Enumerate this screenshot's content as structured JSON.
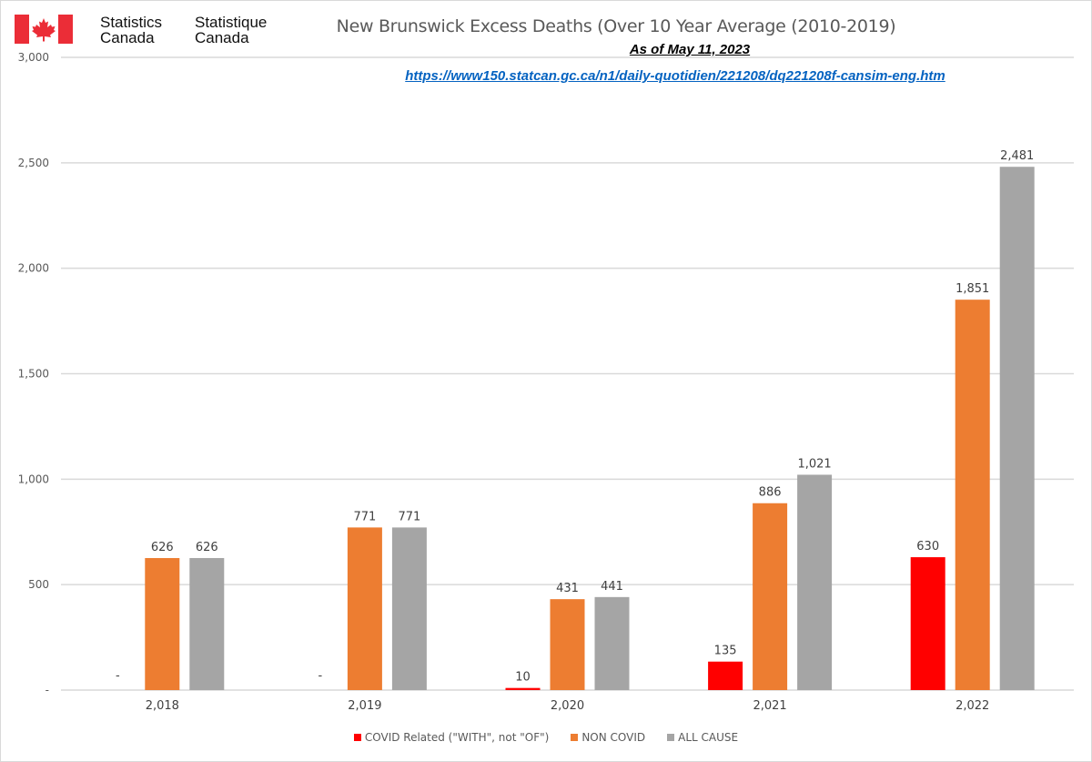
{
  "header": {
    "brand_en_line1": "Statistics",
    "brand_en_line2": "Canada",
    "brand_fr_line1": "Statistique",
    "brand_fr_line2": "Canada",
    "logo_icon": "canada-flag-icon"
  },
  "colors": {
    "covid": "#ff0000",
    "non_covid": "#ed7d31",
    "all_cause": "#a5a5a5",
    "gridline": "#d9d9d9",
    "flag_red": "#eb2d37"
  },
  "chart_data": {
    "type": "bar",
    "title": "New Brunswick Excess Deaths (Over 10 Year Average (2010-2019)",
    "subtitle": "As of May 11, 2023",
    "source_link": "https://www150.statcan.gc.ca/n1/daily-quotidien/221208/dq221208f-cansim-eng.htm",
    "xlabel": "",
    "ylabel": "",
    "categories": [
      "2,018",
      "2,019",
      "2,020",
      "2,021",
      "2,022"
    ],
    "ylim": [
      0,
      3000
    ],
    "yticks": [
      0,
      500,
      1000,
      1500,
      2000,
      2500,
      3000
    ],
    "ytick_labels": [
      "-",
      "500",
      "1,000",
      "1,500",
      "2,000",
      "2,500",
      "3,000"
    ],
    "grid": true,
    "legend_position": "bottom",
    "series": [
      {
        "name": "COVID Related (\"WITH\", not \"OF\")",
        "key": "covid",
        "values": [
          0,
          0,
          10,
          135,
          630
        ],
        "labels": [
          "-",
          "-",
          "10",
          "135",
          "630"
        ]
      },
      {
        "name": "NON COVID",
        "key": "non_covid",
        "values": [
          626,
          771,
          431,
          886,
          1851
        ],
        "labels": [
          "626",
          "771",
          "431",
          "886",
          "1,851"
        ]
      },
      {
        "name": "ALL CAUSE",
        "key": "all_cause",
        "values": [
          626,
          771,
          441,
          1021,
          2481
        ],
        "labels": [
          "626",
          "771",
          "441",
          "1,021",
          "2,481"
        ]
      }
    ]
  }
}
